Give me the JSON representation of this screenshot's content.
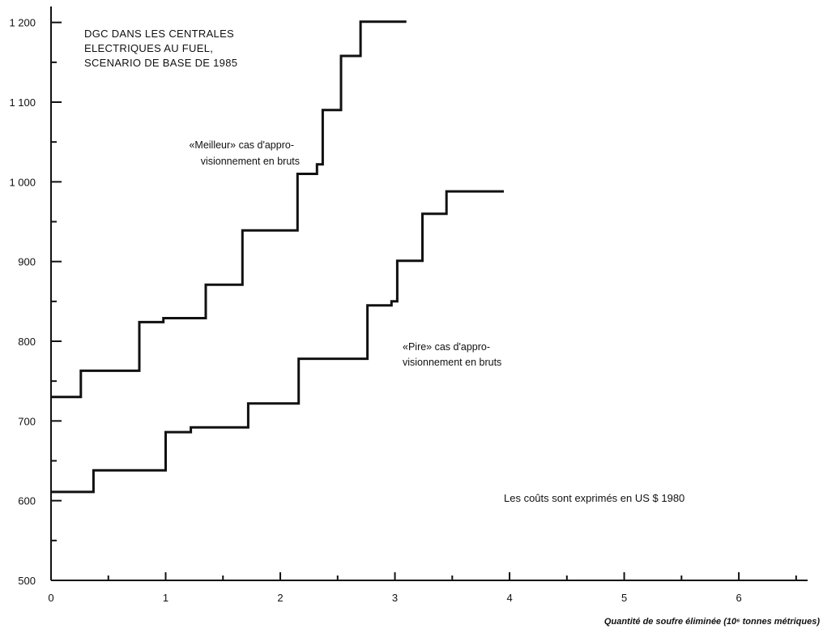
{
  "chart_data": {
    "type": "line",
    "title_lines": [
      "DGC DANS LES CENTRALES",
      "ELECTRIQUES AU FUEL,",
      "SCENARIO DE BASE DE 1985"
    ],
    "xlabel": "Quantité de soufre éliminée (10⁶ tonnes métriques)",
    "ylabel": "",
    "xlim": [
      0,
      6.6
    ],
    "ylim": [
      500,
      1220
    ],
    "x_ticks": [
      0,
      1,
      2,
      3,
      4,
      5,
      6
    ],
    "x_tick_labels": [
      "0",
      "1",
      "2",
      "3",
      "4",
      "5",
      "6"
    ],
    "y_ticks": [
      500,
      600,
      700,
      800,
      900,
      1000,
      1100,
      1200
    ],
    "y_tick_labels": [
      "500",
      "600",
      "700",
      "800",
      "900",
      "1 000",
      "1 100",
      "1 200"
    ],
    "grid": false,
    "note": "Les coûts sont exprimés en US $ 1980",
    "series": [
      {
        "name": "«Meilleur» cas d'approvisionnement en bruts",
        "label_lines": [
          "«Meilleur» cas d'appro-",
          "visionnement en bruts"
        ],
        "step_x": [
          0,
          0.26,
          0.77,
          0.98,
          1.35,
          1.67,
          2.15,
          2.32,
          2.37,
          2.53,
          2.7,
          3.1
        ],
        "step_y": [
          730,
          763,
          824,
          829,
          871,
          939,
          1010,
          1022,
          1090,
          1158,
          1201
        ]
      },
      {
        "name": "«Pire» cas d'approvisionnement en bruts",
        "label_lines": [
          "«Pire» cas d'appro-",
          "visionnement en bruts"
        ],
        "step_x": [
          0,
          0.37,
          1.0,
          1.22,
          1.72,
          2.16,
          2.76,
          2.97,
          3.02,
          3.24,
          3.45,
          3.95
        ],
        "step_y": [
          611,
          638,
          686,
          692,
          722,
          778,
          845,
          850,
          901,
          960,
          988
        ]
      }
    ]
  }
}
